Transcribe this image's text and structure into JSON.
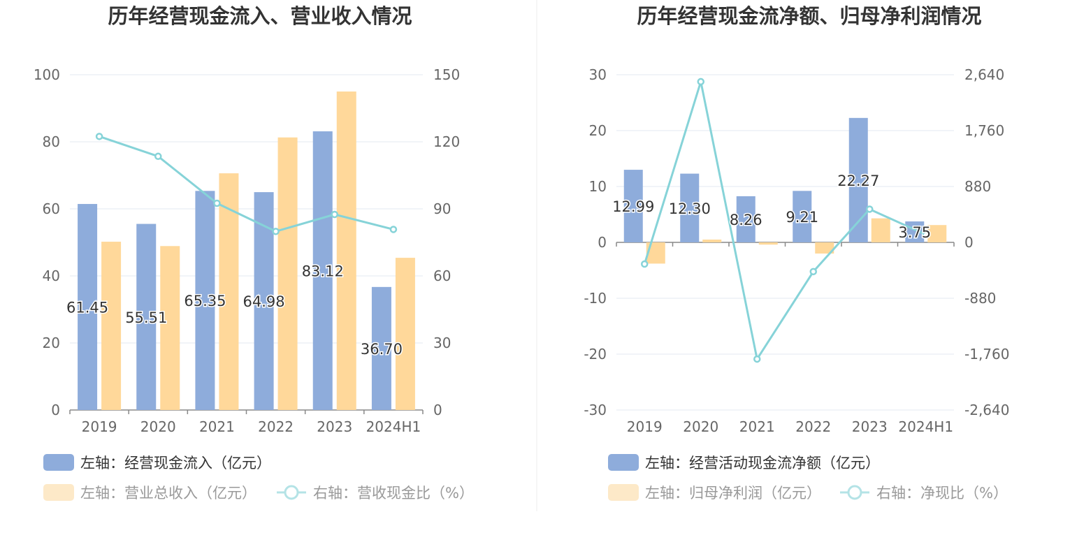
{
  "colors": {
    "blue": "#8eacdb",
    "yellow": "#ffd89a",
    "yellowFaded": "#fde9c8",
    "cyan": "#86d3d8",
    "cyanFaded": "#b4e3e6",
    "grid": "#e3e8f0",
    "axis": "#888888"
  },
  "chart_data": [
    {
      "type": "bar",
      "title": "历年经营现金流入、营业收入情况",
      "categories": [
        "2019",
        "2020",
        "2021",
        "2022",
        "2023",
        "2024H1"
      ],
      "left_axis": {
        "ylim": [
          0,
          100
        ],
        "ticks": [
          "0",
          "20",
          "40",
          "60",
          "80",
          "100"
        ]
      },
      "right_axis": {
        "ylim": [
          0,
          150
        ],
        "ticks": [
          "0",
          "30",
          "60",
          "90",
          "120",
          "150"
        ]
      },
      "series": [
        {
          "name": "左轴：经营现金流入（亿元）",
          "axis": "left",
          "kind": "bar",
          "color": "blue",
          "values": [
            61.45,
            55.51,
            65.35,
            64.98,
            83.12,
            36.7
          ],
          "labels": [
            "61.45",
            "55.51",
            "65.35",
            "64.98",
            "83.12",
            "36.70"
          ]
        },
        {
          "name": "左轴：营业总收入（亿元）",
          "axis": "left",
          "kind": "bar",
          "color": "yellow",
          "values": [
            50.2,
            48.9,
            70.6,
            81.3,
            95.0,
            45.4
          ],
          "labels": []
        },
        {
          "name": "右轴：营收现金比（%）",
          "axis": "right",
          "kind": "line",
          "color": "cyan",
          "values": [
            122.4,
            113.5,
            92.5,
            79.9,
            87.5,
            80.8
          ],
          "labels": []
        }
      ]
    },
    {
      "type": "bar",
      "title": "历年经营现金流净额、归母净利润情况",
      "categories": [
        "2019",
        "2020",
        "2021",
        "2022",
        "2023",
        "2024H1"
      ],
      "left_axis": {
        "ylim": [
          -30,
          30
        ],
        "ticks": [
          "-30",
          "-20",
          "-10",
          "0",
          "10",
          "20",
          "30"
        ]
      },
      "right_axis": {
        "ylim": [
          -2640,
          2640
        ],
        "ticks": [
          "-2,640",
          "-1,760",
          "-880",
          "0",
          "880",
          "1,760",
          "2,640"
        ]
      },
      "series": [
        {
          "name": "左轴：经营活动现金流净额（亿元）",
          "axis": "left",
          "kind": "bar",
          "color": "blue",
          "values": [
            12.99,
            12.3,
            8.26,
            9.21,
            22.27,
            3.75
          ],
          "labels": [
            "12.99",
            "12.30",
            "8.26",
            "9.21",
            "22.27",
            "3.75"
          ]
        },
        {
          "name": "左轴：归母净利润（亿元）",
          "axis": "left",
          "kind": "bar",
          "color": "yellow",
          "values": [
            -3.8,
            0.5,
            -0.4,
            -2.0,
            4.3,
            3.1
          ],
          "labels": []
        },
        {
          "name": "右轴：净现比（%）",
          "axis": "right",
          "kind": "line",
          "color": "cyan",
          "values": [
            -341,
            2531,
            -1838,
            -460,
            523,
            121
          ],
          "labels": []
        }
      ]
    }
  ]
}
